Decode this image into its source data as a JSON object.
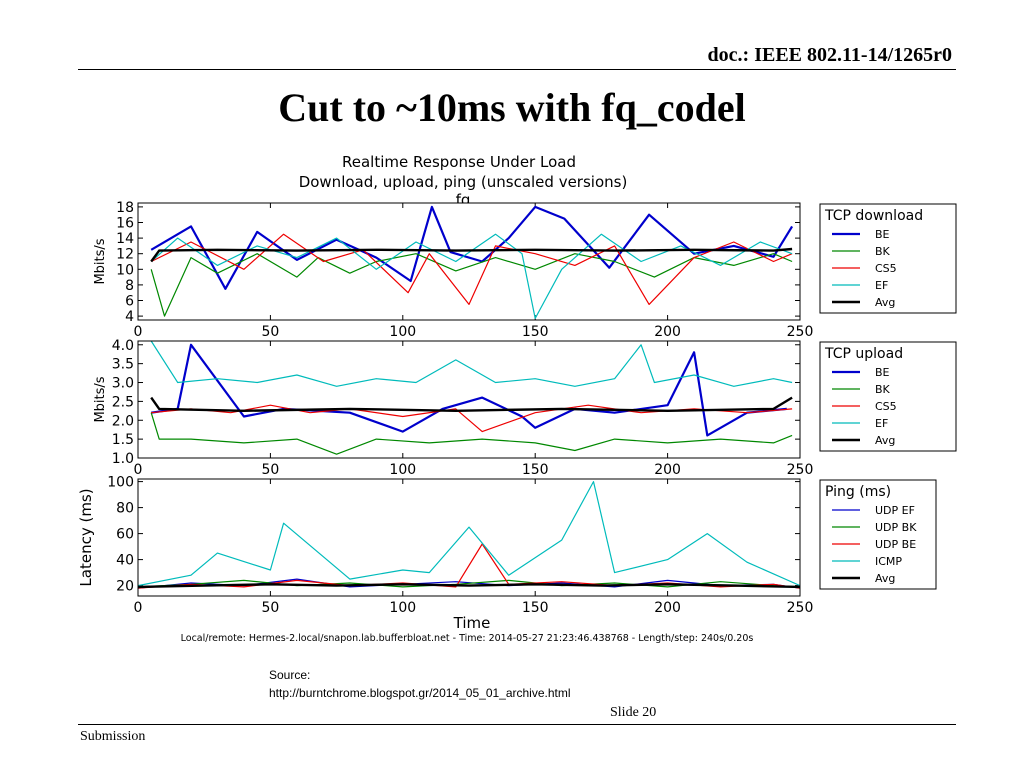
{
  "header": {
    "doc_id": "doc.: IEEE 802.11-14/1265r0"
  },
  "slide": {
    "title": "Cut to ~10ms with fq_codel"
  },
  "chart_data": {
    "type": "line",
    "title": "Realtime Response Under Load",
    "subtitle": "Download, upload, ping (unscaled versions)",
    "subtitle2": "fq",
    "xlabel": "Time",
    "footer": "Local/remote: Hermes-2.local/snapon.lab.bufferbloat.net - Time: 2014-05-27 21:23:46.438768 - Length/step: 240s/0.20s",
    "panels": [
      {
        "ylabel": "Mbits/s",
        "legend_title": "TCP download",
        "xlim": [
          0,
          250
        ],
        "ylim": [
          3.5,
          18.5
        ],
        "yticks": [
          4,
          6,
          8,
          10,
          12,
          14,
          16,
          18
        ],
        "ytick_labels": [
          "4",
          "6",
          "8",
          "10",
          "12",
          "14",
          "16",
          "18"
        ],
        "xticks": [
          0,
          50,
          100,
          150,
          200,
          250
        ],
        "series": [
          {
            "name": "BE",
            "color": "#0000cc",
            "width": 2.2,
            "x": [
              5,
              20,
              33,
              45,
              60,
              75,
              90,
              103,
              111,
              118,
              130,
              140,
              150,
              161,
              178,
              193,
              210,
              225,
              240,
              247
            ],
            "y": [
              12.5,
              15.5,
              7.5,
              14.8,
              11.2,
              13.8,
              11.5,
              8.5,
              18.0,
              12.2,
              11.0,
              14.0,
              18.0,
              16.5,
              10.2,
              17.0,
              12.0,
              13.0,
              11.6,
              15.5
            ]
          },
          {
            "name": "BK",
            "color": "#008800",
            "width": 1.2,
            "x": [
              5,
              10,
              20,
              30,
              45,
              60,
              68,
              80,
              90,
              105,
              120,
              135,
              150,
              165,
              180,
              195,
              210,
              225,
              240,
              247
            ],
            "y": [
              10.0,
              4.0,
              11.5,
              9.5,
              12.0,
              9.0,
              11.5,
              9.5,
              11.0,
              12.0,
              9.8,
              11.5,
              10.0,
              12.0,
              11.0,
              9.0,
              11.5,
              10.5,
              12.0,
              11.0
            ]
          },
          {
            "name": "CS5",
            "color": "#ee0000",
            "width": 1.2,
            "x": [
              5,
              20,
              40,
              55,
              70,
              85,
              102,
              110,
              125,
              135,
              150,
              165,
              180,
              193,
              210,
              225,
              240,
              247
            ],
            "y": [
              11.0,
              13.5,
              10.0,
              14.5,
              11.0,
              12.5,
              7.0,
              12.0,
              5.5,
              13.0,
              12.0,
              10.5,
              13.0,
              5.5,
              11.5,
              13.5,
              11.0,
              12.0
            ]
          },
          {
            "name": "EF",
            "color": "#00bbbb",
            "width": 1.2,
            "x": [
              5,
              15,
              30,
              45,
              60,
              75,
              90,
              105,
              120,
              135,
              145,
              150,
              160,
              175,
              190,
              205,
              220,
              235,
              247
            ],
            "y": [
              11.0,
              14.0,
              10.5,
              13.0,
              11.5,
              14.0,
              10.0,
              13.5,
              11.0,
              14.5,
              12.0,
              3.7,
              10.0,
              14.5,
              11.0,
              13.0,
              10.5,
              13.5,
              12.0
            ]
          },
          {
            "name": "Avg",
            "color": "#000000",
            "width": 2.4,
            "x": [
              5,
              8,
              30,
              60,
              90,
              120,
              150,
              180,
              210,
              240,
              247
            ],
            "y": [
              11.0,
              12.4,
              12.5,
              12.4,
              12.5,
              12.4,
              12.5,
              12.4,
              12.5,
              12.4,
              12.6
            ]
          }
        ]
      },
      {
        "ylabel": "Mbits/s",
        "legend_title": "TCP upload",
        "xlim": [
          0,
          250
        ],
        "ylim": [
          1.0,
          4.1
        ],
        "yticks": [
          1.0,
          1.5,
          2.0,
          2.5,
          3.0,
          3.5,
          4.0
        ],
        "ytick_labels": [
          "1.0",
          "1.5",
          "2.0",
          "2.5",
          "3.0",
          "3.5",
          "4.0"
        ],
        "xticks": [
          0,
          50,
          100,
          150,
          200,
          250
        ],
        "series": [
          {
            "name": "BE",
            "color": "#0000cc",
            "width": 2.2,
            "x": [
              5,
              15,
              20,
              40,
              55,
              80,
              100,
              115,
              130,
              145,
              150,
              165,
              180,
              200,
              210,
              215,
              230,
              245
            ],
            "y": [
              2.2,
              2.3,
              4.0,
              2.1,
              2.3,
              2.2,
              1.7,
              2.3,
              2.6,
              2.1,
              1.8,
              2.3,
              2.2,
              2.4,
              3.8,
              1.6,
              2.2,
              2.3
            ]
          },
          {
            "name": "BK",
            "color": "#008800",
            "width": 1.2,
            "x": [
              5,
              8,
              20,
              40,
              60,
              75,
              90,
              110,
              130,
              150,
              165,
              180,
              200,
              220,
              240,
              247
            ],
            "y": [
              2.2,
              1.5,
              1.5,
              1.4,
              1.5,
              1.1,
              1.5,
              1.4,
              1.5,
              1.4,
              1.2,
              1.5,
              1.4,
              1.5,
              1.4,
              1.6
            ]
          },
          {
            "name": "CS5",
            "color": "#ee0000",
            "width": 1.2,
            "x": [
              5,
              20,
              35,
              50,
              65,
              80,
              100,
              120,
              130,
              150,
              170,
              190,
              210,
              230,
              247
            ],
            "y": [
              2.2,
              2.3,
              2.2,
              2.4,
              2.2,
              2.3,
              2.1,
              2.3,
              1.7,
              2.2,
              2.4,
              2.2,
              2.3,
              2.2,
              2.3
            ]
          },
          {
            "name": "EF",
            "color": "#00bbbb",
            "width": 1.2,
            "x": [
              5,
              15,
              30,
              45,
              60,
              75,
              90,
              105,
              120,
              135,
              150,
              165,
              180,
              190,
              195,
              210,
              225,
              240,
              247
            ],
            "y": [
              4.1,
              3.0,
              3.1,
              3.0,
              3.2,
              2.9,
              3.1,
              3.0,
              3.6,
              3.0,
              3.1,
              2.9,
              3.1,
              4.0,
              3.0,
              3.2,
              2.9,
              3.1,
              3.0
            ]
          },
          {
            "name": "Avg",
            "color": "#000000",
            "width": 2.4,
            "x": [
              5,
              8,
              40,
              80,
              120,
              160,
              200,
              240,
              247
            ],
            "y": [
              2.6,
              2.3,
              2.25,
              2.3,
              2.25,
              2.3,
              2.25,
              2.3,
              2.6
            ]
          }
        ]
      },
      {
        "ylabel": "Latency (ms)",
        "legend_title": "Ping (ms)",
        "xlim": [
          0,
          250
        ],
        "ylim": [
          12,
          102
        ],
        "yticks": [
          20,
          40,
          60,
          80,
          100
        ],
        "ytick_labels": [
          "20",
          "40",
          "60",
          "80",
          "100"
        ],
        "xticks": [
          0,
          50,
          100,
          150,
          200,
          250
        ],
        "xtick_labels": [
          "0",
          "50",
          "100",
          "150",
          "200",
          "250"
        ],
        "series": [
          {
            "name": "UDP EF",
            "color": "#0000cc",
            "width": 1.2,
            "x": [
              0,
              20,
              40,
              60,
              80,
              100,
              120,
              140,
              160,
              180,
              200,
              220,
              240,
              250
            ],
            "y": [
              18,
              22,
              20,
              25,
              19,
              21,
              23,
              20,
              22,
              19,
              24,
              20,
              21,
              18
            ]
          },
          {
            "name": "UDP BK",
            "color": "#008800",
            "width": 1.2,
            "x": [
              0,
              20,
              40,
              60,
              80,
              100,
              120,
              140,
              160,
              180,
              200,
              220,
              240,
              250
            ],
            "y": [
              19,
              21,
              24,
              20,
              22,
              19,
              21,
              24,
              20,
              22,
              19,
              23,
              20,
              19
            ]
          },
          {
            "name": "UDP BE",
            "color": "#ee0000",
            "width": 1.2,
            "x": [
              0,
              20,
              40,
              60,
              80,
              100,
              120,
              130,
              140,
              160,
              180,
              200,
              220,
              240,
              250
            ],
            "y": [
              18,
              21,
              19,
              24,
              20,
              22,
              19,
              52,
              21,
              23,
              20,
              22,
              19,
              21,
              18
            ]
          },
          {
            "name": "ICMP",
            "color": "#00bbbb",
            "width": 1.2,
            "x": [
              0,
              20,
              30,
              50,
              55,
              80,
              100,
              110,
              125,
              140,
              160,
              172,
              180,
              200,
              215,
              230,
              250
            ],
            "y": [
              20,
              28,
              45,
              32,
              68,
              25,
              32,
              30,
              65,
              28,
              55,
              100,
              30,
              40,
              60,
              38,
              20
            ]
          },
          {
            "name": "Avg",
            "color": "#000000",
            "width": 2.4,
            "x": [
              0,
              25,
              50,
              75,
              100,
              125,
              150,
              175,
              200,
              225,
              250
            ],
            "y": [
              19,
              20,
              21,
              20,
              21,
              20,
              21,
              20,
              21,
              20,
              19
            ]
          }
        ]
      }
    ]
  },
  "source": {
    "label": "Source:",
    "url": "http://burntchrome.blogspot.gr/2014_05_01_archive.html"
  },
  "footer": {
    "slide_number": "Slide 20",
    "left_text": "Submission"
  }
}
